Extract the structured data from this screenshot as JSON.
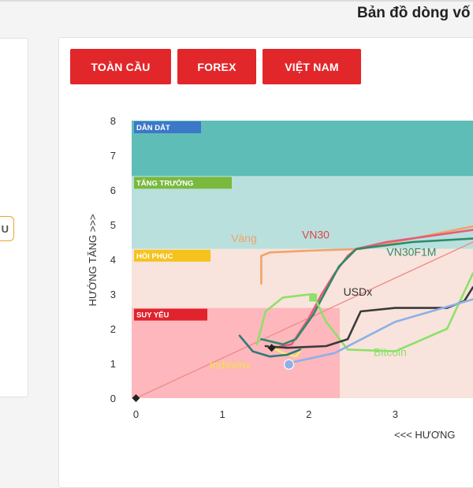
{
  "header": {
    "title": "Bản đồ dòng vố"
  },
  "left_panel": {
    "pill_text": "U"
  },
  "tabs": [
    {
      "label": "TOÀN CẦU"
    },
    {
      "label": "FOREX"
    },
    {
      "label": "VIỆT NAM"
    }
  ],
  "chart_data": {
    "type": "line",
    "title": "",
    "ylabel": "HƯỚNG TĂNG >>>",
    "xlabel": "<<< HƯƠNG",
    "xlim": [
      -0.05,
      3.9
    ],
    "ylim": [
      0,
      8
    ],
    "x_ticks": [
      "0",
      "1",
      "2",
      "3"
    ],
    "y_ticks": [
      "0",
      "1",
      "2",
      "3",
      "4",
      "5",
      "6",
      "7",
      "8"
    ],
    "zones": [
      {
        "label": "DẪN DẮT",
        "y_from": 6.4,
        "y_to": 8.0,
        "color": "#5fbdb8",
        "label_color": "#3c78c8"
      },
      {
        "label": "TĂNG TRƯỞNG",
        "y_from": 4.3,
        "y_to": 6.4,
        "color": "#b9e0dc",
        "label_color": "#79b93d"
      },
      {
        "label": "HỒI PHỤC",
        "y_from": 2.6,
        "y_to": 4.3,
        "color": "#f8e4dc",
        "label_color": "#f6c21c"
      },
      {
        "label": "SUY YẾU",
        "y_from": 0.0,
        "y_to": 2.6,
        "color": "#fdb7bd",
        "label_color": "#e0232c"
      }
    ],
    "diagonal": {
      "from": [
        0,
        0
      ],
      "to": [
        3.9,
        4.5
      ],
      "color": "#f08a86"
    },
    "series": [
      {
        "name": "Vàng",
        "color": "#f3a26a",
        "points": [
          [
            1.45,
            3.3
          ],
          [
            1.45,
            4.1
          ],
          [
            1.55,
            4.2
          ],
          [
            2.0,
            4.25
          ],
          [
            2.6,
            4.3
          ],
          [
            3.3,
            4.65
          ],
          [
            3.9,
            4.95
          ]
        ]
      },
      {
        "name": "VN30",
        "color": "#e65a78",
        "points": [
          [
            1.6,
            1.45
          ],
          [
            1.8,
            1.55
          ],
          [
            2.0,
            2.3
          ],
          [
            2.15,
            3.0
          ],
          [
            2.3,
            3.6
          ],
          [
            2.45,
            4.1
          ],
          [
            2.55,
            4.3
          ],
          [
            2.9,
            4.5
          ],
          [
            3.9,
            4.85
          ]
        ]
      },
      {
        "name": "VN30F1M",
        "color": "#2e8a6a",
        "points": [
          [
            1.45,
            1.7
          ],
          [
            1.7,
            1.55
          ],
          [
            1.85,
            1.7
          ],
          [
            2.05,
            2.4
          ],
          [
            2.2,
            3.1
          ],
          [
            2.35,
            3.8
          ],
          [
            2.55,
            4.3
          ],
          [
            3.2,
            4.5
          ],
          [
            3.9,
            4.6
          ]
        ]
      },
      {
        "name": "Bitcoin",
        "color": "#8ee06a",
        "points": [
          [
            1.4,
            1.55
          ],
          [
            1.5,
            2.5
          ],
          [
            1.7,
            2.9
          ],
          [
            2.05,
            3.0
          ],
          [
            2.2,
            2.2
          ],
          [
            2.45,
            1.4
          ],
          [
            3.0,
            1.35
          ],
          [
            3.6,
            2.0
          ],
          [
            3.9,
            3.6
          ]
        ]
      },
      {
        "name": "USDx",
        "color": "#3a3a3a",
        "points": [
          [
            1.5,
            1.5
          ],
          [
            1.75,
            1.45
          ],
          [
            2.2,
            1.5
          ],
          [
            2.45,
            1.7
          ],
          [
            2.6,
            2.5
          ],
          [
            3.0,
            2.6
          ],
          [
            3.6,
            2.6
          ],
          [
            3.8,
            2.8
          ],
          [
            3.9,
            3.2
          ]
        ]
      },
      {
        "name": "Indexinv",
        "color": "#f7ee6a",
        "points": [
          [
            1.55,
            1.5
          ],
          [
            1.7,
            1.3
          ],
          [
            1.85,
            1.2
          ],
          [
            1.9,
            1.35
          ]
        ]
      },
      {
        "name": "",
        "color": "#2c7a7a",
        "points": [
          [
            1.2,
            1.8
          ],
          [
            1.35,
            1.35
          ],
          [
            1.55,
            1.2
          ],
          [
            1.75,
            1.25
          ],
          [
            1.9,
            1.4
          ]
        ]
      },
      {
        "name": "",
        "color": "#8fb0e6",
        "points": [
          [
            1.75,
            1.0
          ],
          [
            2.3,
            1.3
          ],
          [
            3.0,
            2.2
          ],
          [
            3.9,
            2.85
          ]
        ]
      }
    ],
    "labels": [
      {
        "text": "Vàng",
        "x": 1.1,
        "y": 4.5,
        "color": "#f3a26a"
      },
      {
        "text": "VN30",
        "x": 1.92,
        "y": 4.6,
        "color": "#e0434e"
      },
      {
        "text": "VN30F1M",
        "x": 2.9,
        "y": 4.1,
        "color": "#2e8a6a"
      },
      {
        "text": "USDx",
        "x": 2.4,
        "y": 2.95,
        "color": "#333333"
      },
      {
        "text": "Bitcoin",
        "x": 2.75,
        "y": 1.22,
        "color": "#8ee06a"
      },
      {
        "text": "Indexinv",
        "x": 0.85,
        "y": 0.85,
        "color": "#f3e24a"
      }
    ],
    "markers": [
      {
        "shape": "diamond",
        "x": 0.0,
        "y": 0.0,
        "color": "#222222"
      },
      {
        "shape": "diamond",
        "x": 1.57,
        "y": 1.45,
        "color": "#222222"
      },
      {
        "shape": "square",
        "x": 2.05,
        "y": 2.9,
        "color": "#8ee06a"
      },
      {
        "shape": "circle",
        "x": 1.77,
        "y": 0.97,
        "color": "#8fb0e6"
      }
    ]
  }
}
